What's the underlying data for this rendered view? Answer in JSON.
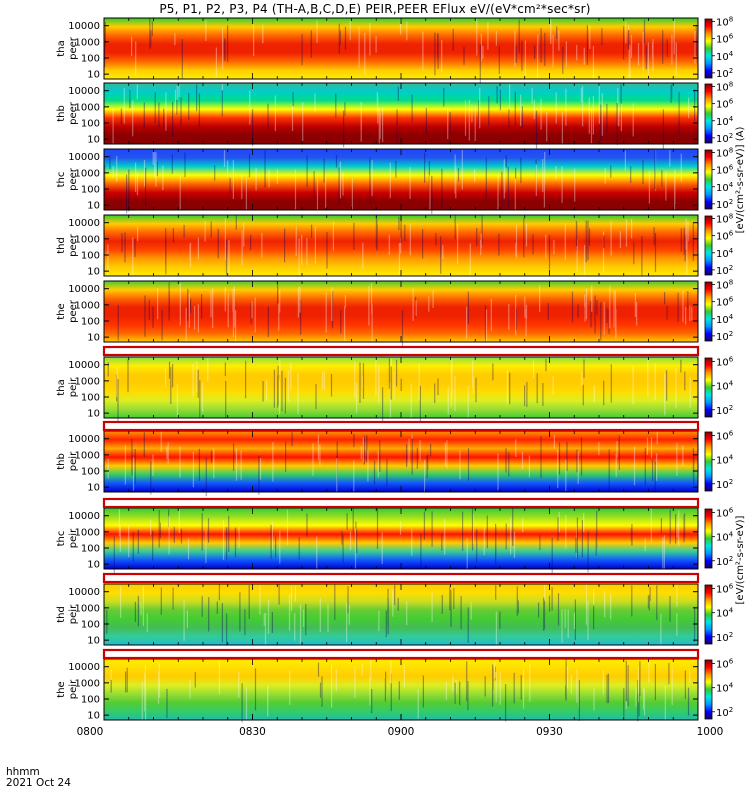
{
  "title": "P5, P1, P2, P3, P4 (TH-A,B,C,D,E) PEIR,PEER EFlux eV/(eV*cm²*sec*sr)",
  "time_unit_label": "hhmm",
  "date_label": "2021 Oct 24",
  "colorbar_title_electron": "[eV/(cm²-s-sr-eV)] (A)",
  "colorbar_title_ion": "[eV/(cm²-s-sr-eV)]",
  "colors": {
    "colormap": [
      "#1a0066",
      "#0000ff",
      "#0099ff",
      "#00e5e5",
      "#33cc33",
      "#ffff00",
      "#ff9900",
      "#ff0000",
      "#8b0000"
    ],
    "separator": "#cc0000"
  },
  "chart_data": {
    "type": "heatmap",
    "x_range": [
      "0800",
      "1000"
    ],
    "x_ticks": [
      "0800",
      "0830",
      "0900",
      "0930",
      "1000"
    ],
    "y_scale": "log",
    "y_ticks": [
      "10",
      "100",
      "1000",
      "10000"
    ],
    "y_range": [
      5,
      30000
    ],
    "colorbar_scale": "log",
    "panels": [
      {
        "label": [
          "tha",
          "peer"
        ],
        "cb_ticks_exp": [
          2,
          4,
          6,
          8
        ]
      },
      {
        "label": [
          "thb",
          "peer"
        ],
        "cb_ticks_exp": [
          2,
          4,
          6,
          8
        ]
      },
      {
        "label": [
          "thc",
          "peer"
        ],
        "cb_ticks_exp": [
          2,
          4,
          6,
          8
        ]
      },
      {
        "label": [
          "thd",
          "peer"
        ],
        "cb_ticks_exp": [
          2,
          4,
          6,
          8
        ]
      },
      {
        "label": [
          "the",
          "peer"
        ],
        "cb_ticks_exp": [
          2,
          4,
          6,
          8
        ]
      },
      {
        "label": [
          "tha",
          "peir"
        ],
        "cb_ticks_exp": [
          2,
          4,
          6
        ]
      },
      {
        "label": [
          "thb",
          "peir"
        ],
        "cb_ticks_exp": [
          2,
          4,
          6
        ]
      },
      {
        "label": [
          "thc",
          "peir"
        ],
        "cb_ticks_exp": [
          2,
          4,
          6
        ]
      },
      {
        "label": [
          "thd",
          "peir"
        ],
        "cb_ticks_exp": [
          2,
          4,
          6
        ]
      },
      {
        "label": [
          "the",
          "peir"
        ],
        "cb_ticks_exp": [
          2,
          4,
          6
        ]
      }
    ]
  }
}
